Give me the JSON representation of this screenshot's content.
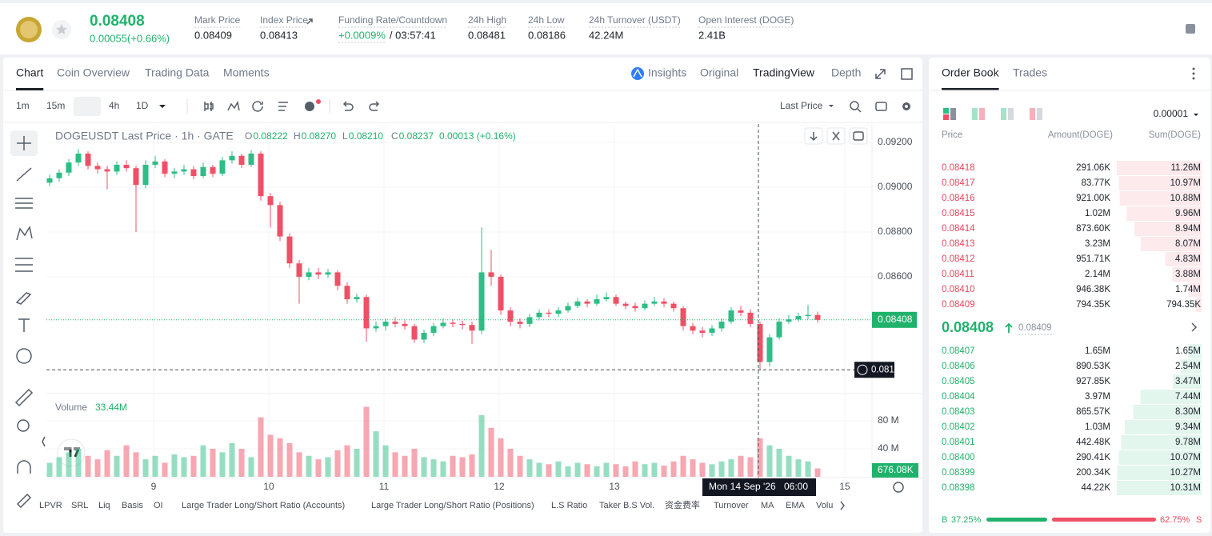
{
  "header": {
    "price": "0.08408",
    "change": "0.00055(+0.66%)",
    "stats": [
      {
        "label": "Mark Price",
        "value": "0.08409"
      },
      {
        "label": "Index Price",
        "value": "0.08413"
      },
      {
        "label": "Funding Rate/Countdown",
        "value": "+0.0009%",
        "value2": "/ 03:57:41"
      },
      {
        "label": "24h High",
        "value": "0.08481"
      },
      {
        "label": "24h Low",
        "value": "0.08186"
      },
      {
        "label": "24h Turnover (USDT)",
        "value": "42.24M"
      },
      {
        "label": "Open Interest (DOGE)",
        "value": "2.41B"
      }
    ]
  },
  "tabs": [
    "Chart",
    "Coin Overview",
    "Trading Data",
    "Moments"
  ],
  "views": [
    "Insights",
    "Original",
    "TradingView",
    "Depth"
  ],
  "intervals": [
    "1m",
    "15m",
    "1h",
    "4h",
    "1D"
  ],
  "price_type": "Last Price",
  "chart": {
    "type": "candlestick",
    "title": "DOGEUSDT Last Price · 1h · GATE",
    "ohlc": [
      {
        "key": "O",
        "value": "0.08222"
      },
      {
        "key": "H",
        "value": "0.08270"
      },
      {
        "key": "L",
        "value": "0.08210"
      },
      {
        "key": "C",
        "value": "0.08237"
      }
    ],
    "change": "0.00013 (+0.16%)",
    "up_color": "#2ebd85",
    "down_color": "#ef5066",
    "candles": [
      [
        0.0902,
        0.09055,
        0.09005,
        0.0904
      ],
      [
        0.0904,
        0.0908,
        0.09025,
        0.09065
      ],
      [
        0.09065,
        0.09125,
        0.0905,
        0.0911
      ],
      [
        0.0911,
        0.0917,
        0.09095,
        0.0915
      ],
      [
        0.0915,
        0.0916,
        0.0908,
        0.09095
      ],
      [
        0.09095,
        0.0911,
        0.0906,
        0.0908
      ],
      [
        0.0908,
        0.09095,
        0.0899,
        0.0907
      ],
      [
        0.0907,
        0.09115,
        0.09055,
        0.091
      ],
      [
        0.091,
        0.0912,
        0.0907,
        0.09085
      ],
      [
        0.09085,
        0.09095,
        0.088,
        0.0901
      ],
      [
        0.0901,
        0.0912,
        0.08995,
        0.091
      ],
      [
        0.091,
        0.0914,
        0.09085,
        0.09115
      ],
      [
        0.09115,
        0.09125,
        0.09045,
        0.0906
      ],
      [
        0.0906,
        0.09085,
        0.0904,
        0.0907
      ],
      [
        0.0907,
        0.091,
        0.09055,
        0.0908
      ],
      [
        0.0908,
        0.09095,
        0.09035,
        0.0905
      ],
      [
        0.0905,
        0.0911,
        0.0904,
        0.0909
      ],
      [
        0.0909,
        0.091,
        0.09045,
        0.0906
      ],
      [
        0.0906,
        0.09135,
        0.0905,
        0.0912
      ],
      [
        0.0912,
        0.0916,
        0.09105,
        0.0914
      ],
      [
        0.0914,
        0.0915,
        0.09085,
        0.091
      ],
      [
        0.091,
        0.09165,
        0.0909,
        0.0915
      ],
      [
        0.0915,
        0.0916,
        0.0894,
        0.0896
      ],
      [
        0.0896,
        0.08975,
        0.0882,
        0.0892
      ],
      [
        0.0892,
        0.08935,
        0.0876,
        0.0878
      ],
      [
        0.0878,
        0.08795,
        0.0864,
        0.0866
      ],
      [
        0.0866,
        0.08675,
        0.0848,
        0.086
      ],
      [
        0.086,
        0.0864,
        0.08585,
        0.0862
      ],
      [
        0.0862,
        0.0864,
        0.0859,
        0.0861
      ],
      [
        0.0861,
        0.08635,
        0.08595,
        0.0862
      ],
      [
        0.0862,
        0.0863,
        0.0854,
        0.0856
      ],
      [
        0.0856,
        0.08575,
        0.0848,
        0.085
      ],
      [
        0.085,
        0.08525,
        0.08485,
        0.0851
      ],
      [
        0.0851,
        0.0852,
        0.0831,
        0.0837
      ],
      [
        0.0837,
        0.084,
        0.08355,
        0.0838
      ],
      [
        0.0838,
        0.08415,
        0.0836,
        0.084
      ],
      [
        0.084,
        0.0842,
        0.08375,
        0.0839
      ],
      [
        0.0839,
        0.08405,
        0.08365,
        0.0838
      ],
      [
        0.0838,
        0.0839,
        0.08305,
        0.0832
      ],
      [
        0.0832,
        0.08365,
        0.08305,
        0.0835
      ],
      [
        0.0835,
        0.08395,
        0.08335,
        0.0838
      ],
      [
        0.0838,
        0.08415,
        0.0837,
        0.08395
      ],
      [
        0.08395,
        0.0841,
        0.08375,
        0.0839
      ],
      [
        0.0839,
        0.08405,
        0.08365,
        0.08385
      ],
      [
        0.08385,
        0.084,
        0.083,
        0.0836
      ],
      [
        0.0836,
        0.0882,
        0.08345,
        0.0862
      ],
      [
        0.0862,
        0.0872,
        0.0856,
        0.086
      ],
      [
        0.086,
        0.0861,
        0.0843,
        0.0845
      ],
      [
        0.0845,
        0.08465,
        0.0838,
        0.084
      ],
      [
        0.084,
        0.08415,
        0.0837,
        0.0839
      ],
      [
        0.0839,
        0.08435,
        0.08375,
        0.0842
      ],
      [
        0.0842,
        0.08455,
        0.08405,
        0.0844
      ],
      [
        0.0844,
        0.08455,
        0.0842,
        0.08435
      ],
      [
        0.08435,
        0.08465,
        0.0842,
        0.0845
      ],
      [
        0.0845,
        0.08485,
        0.0844,
        0.0847
      ],
      [
        0.0847,
        0.08505,
        0.0846,
        0.0849
      ],
      [
        0.0849,
        0.085,
        0.08465,
        0.0848
      ],
      [
        0.0848,
        0.0852,
        0.0847,
        0.085
      ],
      [
        0.085,
        0.0853,
        0.0849,
        0.0851
      ],
      [
        0.0851,
        0.0852,
        0.0847,
        0.0848
      ],
      [
        0.0848,
        0.0849,
        0.08455,
        0.0847
      ],
      [
        0.0847,
        0.08485,
        0.08445,
        0.0846
      ],
      [
        0.0846,
        0.08495,
        0.0845,
        0.0848
      ],
      [
        0.0848,
        0.0851,
        0.0847,
        0.0849
      ],
      [
        0.0849,
        0.08505,
        0.08465,
        0.0848
      ],
      [
        0.0848,
        0.0849,
        0.08445,
        0.0846
      ],
      [
        0.0846,
        0.0847,
        0.0836,
        0.0838
      ],
      [
        0.0838,
        0.08395,
        0.08345,
        0.0836
      ],
      [
        0.0836,
        0.08375,
        0.0833,
        0.0835
      ],
      [
        0.0835,
        0.08385,
        0.08335,
        0.0837
      ],
      [
        0.0837,
        0.08415,
        0.08355,
        0.084
      ],
      [
        0.084,
        0.08465,
        0.0839,
        0.0845
      ],
      [
        0.0845,
        0.0847,
        0.08425,
        0.0844
      ],
      [
        0.0844,
        0.08455,
        0.08375,
        0.0839
      ],
      [
        0.0839,
        0.084,
        0.08185,
        0.0822
      ],
      [
        0.0822,
        0.08345,
        0.082,
        0.0833
      ],
      [
        0.0833,
        0.08415,
        0.0832,
        0.084
      ],
      [
        0.084,
        0.0843,
        0.0839,
        0.0841
      ],
      [
        0.0841,
        0.0844,
        0.084,
        0.08425
      ],
      [
        0.08425,
        0.08475,
        0.0841,
        0.0843
      ],
      [
        0.0843,
        0.08445,
        0.08395,
        0.08408
      ]
    ],
    "ylim": [
      0.08086,
      0.09282
    ],
    "yticks": [
      {
        "value": 0.092,
        "label": "0.09200"
      },
      {
        "value": 0.09,
        "label": "0.09000"
      },
      {
        "value": 0.088,
        "label": "0.08800"
      },
      {
        "value": 0.086,
        "label": "0.08600"
      }
    ],
    "grid": true,
    "last_price": 0.08408,
    "crosshair_price": 0.08185,
    "crosshair_time": "Mon 14 Sep '26",
    "crosshair_hour": "06:00",
    "x_ticks": [
      "9",
      "10",
      "11",
      "12",
      "13",
      "15"
    ],
    "volume": {
      "title": "Volume",
      "value": "33.44M",
      "values": [
        20,
        28,
        35,
        40,
        30,
        25,
        38,
        30,
        45,
        35,
        25,
        30,
        20,
        32,
        28,
        30,
        45,
        40,
        35,
        48,
        40,
        28,
        85,
        60,
        55,
        48,
        35,
        30,
        25,
        28,
        38,
        45,
        40,
        100,
        65,
        45,
        35,
        30,
        40,
        28,
        25,
        22,
        30,
        28,
        32,
        88,
        70,
        55,
        40,
        30,
        25,
        20,
        18,
        22,
        15,
        20,
        18,
        15,
        20,
        18,
        15,
        22,
        18,
        20,
        16,
        22,
        30,
        25,
        20,
        18,
        22,
        25,
        30,
        28,
        55,
        45,
        40,
        30,
        25,
        22,
        12
      ],
      "ylim": [
        0,
        104
      ],
      "yticks": [
        {
          "value": 80,
          "label": "80 M"
        },
        {
          "value": 40,
          "label": "40 M"
        }
      ],
      "last": "676.08K"
    }
  },
  "indicators": [
    "LPVR",
    "SRL",
    "Liq",
    "Basis",
    "OI",
    "Large Trader Long/Short Ratio (Accounts)",
    "Large Trader Long/Short Ratio (Positions)",
    "L.S Ratio",
    "Taker B.S Vol.",
    "资金费率",
    "Turnover",
    "MA",
    "EMA",
    "Volu"
  ],
  "order_book": {
    "tabs": [
      "Order Book",
      "Trades"
    ],
    "precision": "0.00001",
    "columns": [
      "Price",
      "Amount(DOGE)",
      "Sum(DOGE)"
    ],
    "asks": [
      [
        "0.08418",
        "291.06K",
        "11.26M"
      ],
      [
        "0.08417",
        "83.77K",
        "10.97M"
      ],
      [
        "0.08416",
        "921.00K",
        "10.88M"
      ],
      [
        "0.08415",
        "1.02M",
        "9.96M"
      ],
      [
        "0.08414",
        "873.60K",
        "8.94M"
      ],
      [
        "0.08413",
        "3.23M",
        "8.07M"
      ],
      [
        "0.08412",
        "951.71K",
        "4.83M"
      ],
      [
        "0.08411",
        "2.14M",
        "3.88M"
      ],
      [
        "0.08410",
        "946.38K",
        "1.74M"
      ],
      [
        "0.08409",
        "794.35K",
        "794.35K"
      ]
    ],
    "last": "0.08408",
    "mark": "0.08409",
    "bids": [
      [
        "0.08407",
        "1.65M",
        "1.65M"
      ],
      [
        "0.08406",
        "890.53K",
        "2.54M"
      ],
      [
        "0.08405",
        "927.85K",
        "3.47M"
      ],
      [
        "0.08404",
        "3.97M",
        "7.44M"
      ],
      [
        "0.08403",
        "865.57K",
        "8.30M"
      ],
      [
        "0.08402",
        "1.03M",
        "9.34M"
      ],
      [
        "0.08401",
        "442.48K",
        "9.78M"
      ],
      [
        "0.08400",
        "290.41K",
        "10.07M"
      ],
      [
        "0.08399",
        "200.34K",
        "10.27M"
      ],
      [
        "0.08398",
        "44.22K",
        "10.31M"
      ]
    ],
    "buy_label": "B",
    "buy_ratio": "37.25%",
    "sell_ratio": "62.75%",
    "sell_label": "S"
  }
}
